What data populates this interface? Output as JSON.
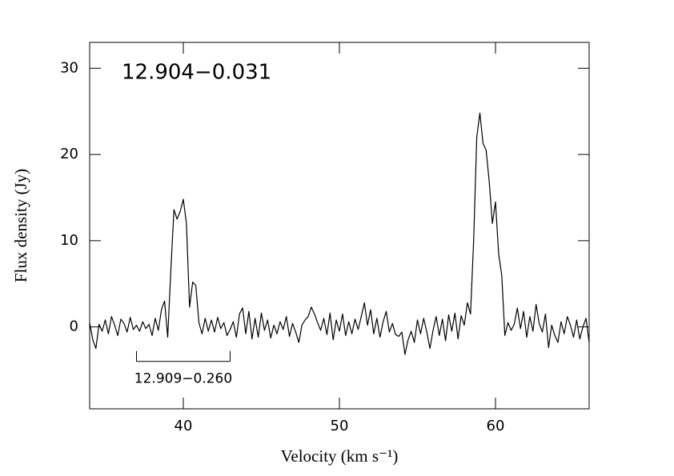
{
  "chart_data": {
    "type": "line",
    "title": "12.904−0.031",
    "xlabel": "Velocity (km s⁻¹)",
    "ylabel": "Flux density (Jy)",
    "xlim": [
      34,
      66
    ],
    "ylim": [
      -9.5,
      33
    ],
    "xticks": [
      40,
      50,
      60
    ],
    "yticks": [
      0,
      10,
      20,
      30
    ],
    "color": "#000000",
    "x": [
      34,
      34.2,
      34.4,
      34.6,
      34.8,
      35,
      35.2,
      35.4,
      35.6,
      35.8,
      36,
      36.2,
      36.4,
      36.6,
      36.8,
      37,
      37.2,
      37.4,
      37.6,
      37.8,
      38,
      38.2,
      38.4,
      38.6,
      38.8,
      39,
      39.2,
      39.4,
      39.6,
      39.8,
      40,
      40.2,
      40.4,
      40.6,
      40.8,
      41,
      41.2,
      41.4,
      41.6,
      41.8,
      42,
      42.2,
      42.4,
      42.6,
      42.8,
      43,
      43.2,
      43.4,
      43.6,
      43.8,
      44,
      44.2,
      44.4,
      44.6,
      44.8,
      45,
      45.2,
      45.4,
      45.6,
      45.8,
      46,
      46.2,
      46.4,
      46.6,
      46.8,
      47,
      47.2,
      47.4,
      47.6,
      47.8,
      48,
      48.2,
      48.4,
      48.6,
      48.8,
      49,
      49.2,
      49.4,
      49.6,
      49.8,
      50,
      50.2,
      50.4,
      50.6,
      50.8,
      51,
      51.2,
      51.4,
      51.6,
      51.8,
      52,
      52.2,
      52.4,
      52.6,
      52.8,
      53,
      53.2,
      53.4,
      53.6,
      53.8,
      54,
      54.2,
      54.4,
      54.6,
      54.8,
      55,
      55.2,
      55.4,
      55.6,
      55.8,
      56,
      56.2,
      56.4,
      56.6,
      56.8,
      57,
      57.2,
      57.4,
      57.6,
      57.8,
      58,
      58.2,
      58.4,
      58.6,
      58.8,
      59,
      59.2,
      59.4,
      59.6,
      59.8,
      60,
      60.2,
      60.4,
      60.6,
      60.8,
      61,
      61.2,
      61.4,
      61.6,
      61.8,
      62,
      62.2,
      62.4,
      62.6,
      62.8,
      63,
      63.2,
      63.4,
      63.6,
      63.8,
      64,
      64.2,
      64.4,
      64.6,
      64.8,
      65,
      65.2,
      65.4,
      65.6,
      65.8,
      66
    ],
    "values": [
      0.5,
      -1.5,
      -2.5,
      0.3,
      -0.5,
      0.8,
      -0.8,
      1.2,
      0.2,
      -1.0,
      0.9,
      0.4,
      -0.6,
      1.1,
      -0.3,
      0.2,
      -0.5,
      0.6,
      -0.2,
      0.3,
      -1.0,
      1.0,
      -0.4,
      2.0,
      3.0,
      -1.2,
      6.5,
      13.6,
      12.5,
      13.4,
      14.8,
      12.0,
      2.3,
      5.2,
      4.8,
      0.5,
      -0.8,
      1.0,
      -0.5,
      0.8,
      -0.6,
      1.1,
      -0.2,
      0.5,
      -1.0,
      -0.3,
      0.6,
      -1.2,
      1.5,
      2.2,
      -0.8,
      1.8,
      -1.4,
      1.0,
      -1.2,
      1.6,
      -0.4,
      0.8,
      -1.3,
      0.2,
      -0.8,
      0.6,
      -0.3,
      1.2,
      -1.1,
      0.4,
      -0.6,
      -1.8,
      0.2,
      0.8,
      1.2,
      2.3,
      1.5,
      0.5,
      -0.4,
      1.0,
      -0.9,
      1.6,
      -1.5,
      0.8,
      -0.5,
      1.5,
      -1.0,
      0.6,
      -0.8,
      0.9,
      -0.3,
      1.2,
      2.8,
      0.2,
      2.0,
      -0.8,
      1.0,
      -1.2,
      0.6,
      1.8,
      -0.6,
      0.4,
      -0.9,
      -1.1,
      -0.6,
      -3.2,
      -1.5,
      -0.5,
      -1.8,
      0.8,
      -0.8,
      1.0,
      -0.6,
      -2.5,
      -0.4,
      1.2,
      -1.0,
      0.9,
      -1.6,
      1.4,
      -0.5,
      1.6,
      -1.4,
      1.3,
      0.2,
      2.8,
      1.5,
      10.0,
      22.0,
      24.8,
      21.3,
      20.5,
      16.8,
      12.0,
      14.5,
      8.5,
      6.0,
      -1.0,
      0.5,
      -0.4,
      0.3,
      2.2,
      -0.2,
      1.8,
      -1.2,
      1.2,
      -0.5,
      2.6,
      0.4,
      -0.6,
      1.5,
      -2.4,
      0.2,
      -1.0,
      -1.8,
      0.6,
      -0.8,
      1.2,
      0.2,
      -1.2,
      0.8,
      -1.4,
      0.0,
      1.0,
      -1.8
    ],
    "bracket": {
      "label": "12.909−0.260",
      "x": [
        37,
        43
      ],
      "y": -4
    }
  }
}
